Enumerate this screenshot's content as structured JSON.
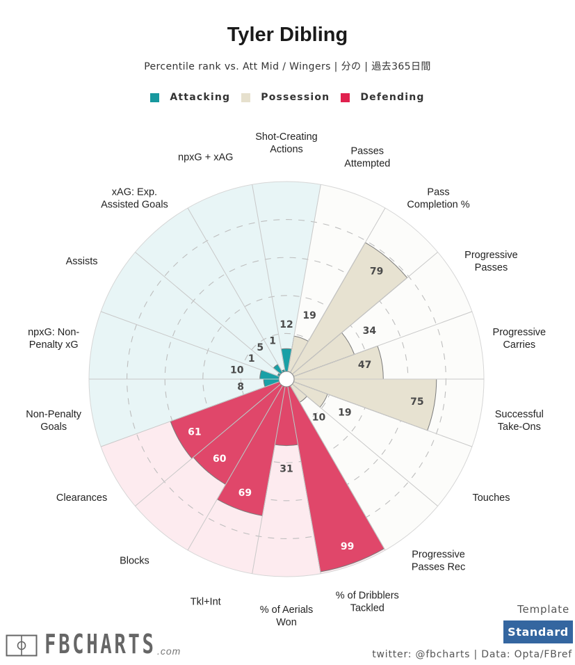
{
  "header": {
    "title": "Tyler Dibling",
    "subtitle": "Percentile rank vs. Att Mid / Wingers | 分の | 過去365日間"
  },
  "legend": [
    {
      "label": "Attacking",
      "color": "#17989e"
    },
    {
      "label": "Possession",
      "color": "#e6e0cd"
    },
    {
      "label": "Defending",
      "color": "#e0214e"
    }
  ],
  "chart_data": {
    "type": "polar-bar",
    "title": "Tyler Dibling",
    "rlim": [
      0,
      100
    ],
    "grid_rings": [
      20,
      40,
      60,
      80
    ],
    "grid": true,
    "legend_placement": "top-center",
    "groups": {
      "Attacking": {
        "fill": "#19a0a6",
        "background": "#e8f5f6",
        "label_color": "#4a4a4a"
      },
      "Possession": {
        "fill": "#e7e2d1",
        "background": "#fcfcfa",
        "label_color": "#4a4a4a"
      },
      "Defending": {
        "fill": "#e0476a",
        "background": "#fdebef",
        "label_color": "#ffffff"
      }
    },
    "categories": [
      {
        "label": "Shot-Creating\nActions",
        "value": 12,
        "group": "Attacking"
      },
      {
        "label": "Passes\nAttempted",
        "value": 19,
        "group": "Possession"
      },
      {
        "label": "Pass\nCompletion %",
        "value": 79,
        "group": "Possession"
      },
      {
        "label": "Progressive\nPasses",
        "value": 34,
        "group": "Possession"
      },
      {
        "label": "Progressive\nCarries",
        "value": 47,
        "group": "Possession"
      },
      {
        "label": "Successful\nTake-Ons",
        "value": 75,
        "group": "Possession"
      },
      {
        "label": "Touches",
        "value": 19,
        "group": "Possession"
      },
      {
        "label": "Progressive\nPasses Rec",
        "value": 10,
        "group": "Possession"
      },
      {
        "label": "% of Dribblers\nTackled",
        "value": 99,
        "group": "Defending"
      },
      {
        "label": "% of Aerials\nWon",
        "value": 31,
        "group": "Defending"
      },
      {
        "label": "Tkl+Int",
        "value": 69,
        "group": "Defending"
      },
      {
        "label": "Blocks",
        "value": 60,
        "group": "Defending"
      },
      {
        "label": "Clearances",
        "value": 61,
        "group": "Defending"
      },
      {
        "label": "Non-Penalty\nGoals",
        "value": 8,
        "group": "Attacking"
      },
      {
        "label": "npxG: Non-\nPenalty xG",
        "value": 10,
        "group": "Attacking"
      },
      {
        "label": "Assists",
        "value": 1,
        "group": "Attacking"
      },
      {
        "label": "xAG: Exp.\nAssisted Goals",
        "value": 5,
        "group": "Attacking"
      },
      {
        "label": "npxG + xAG",
        "value": 1,
        "group": "Attacking"
      }
    ]
  },
  "footer": {
    "template_label": "Template",
    "template_button": "Standard",
    "credit": "twitter: @fbcharts | Data: Opta/FBref",
    "logo_text": "FBCHARTS",
    "logo_suffix": ".com"
  }
}
